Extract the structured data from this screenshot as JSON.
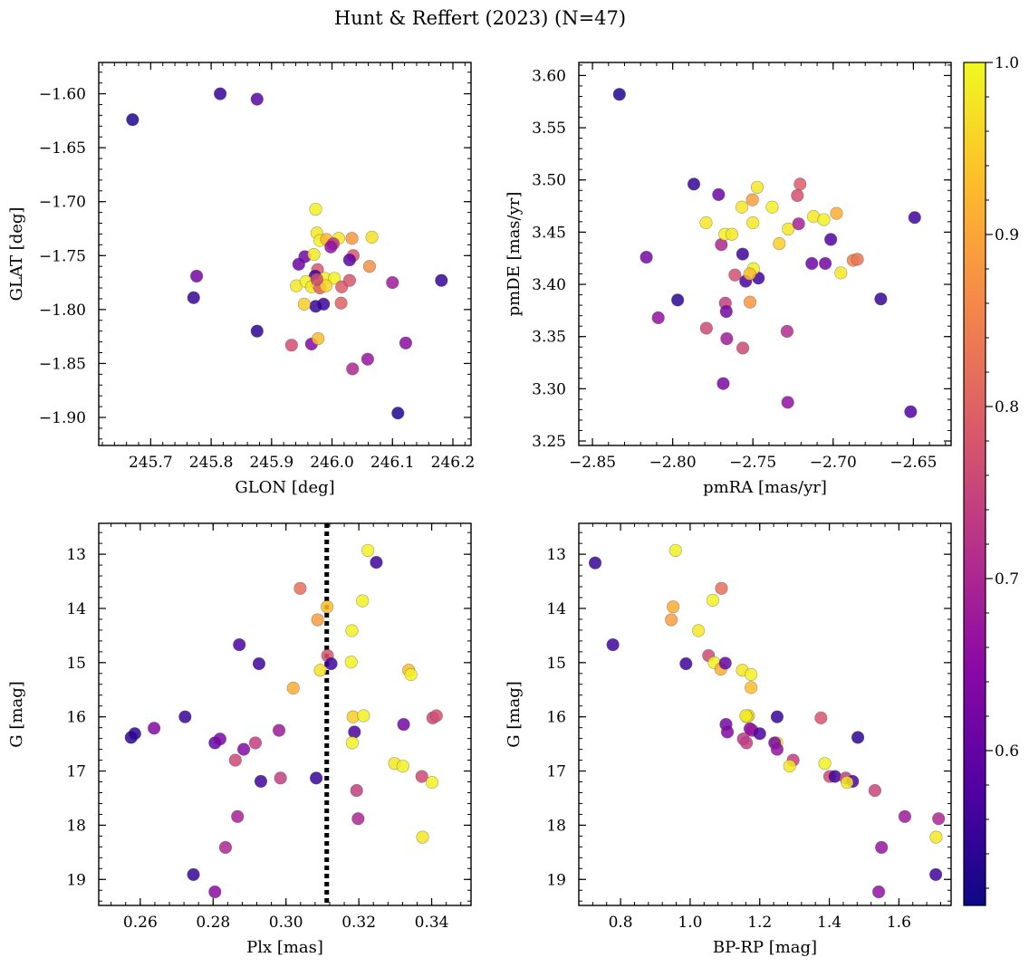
{
  "chart_data": {
    "title": "Hunt & Reffert (2023) (N=47)",
    "type": "scatter",
    "colormap": "plasma",
    "colorbar": {
      "range": [
        0.51,
        1.0
      ],
      "ticks": [
        0.6,
        0.7,
        0.8,
        0.9,
        1.0
      ],
      "tick_labels": [
        "0.6",
        "0.7",
        "0.8",
        "0.9",
        "1.0"
      ]
    },
    "panels": [
      {
        "id": "glon-glat",
        "xlabel": "GLON [deg]",
        "ylabel": "GLAT [deg]",
        "xlim": [
          245.614,
          246.23
        ],
        "ylim": [
          -1.926,
          -1.571
        ],
        "xticks": [
          245.7,
          245.8,
          245.9,
          246.0,
          246.1,
          246.2
        ],
        "xtick_labels": [
          "245.7",
          "245.8",
          "245.9",
          "246.0",
          "246.1",
          "246.2"
        ],
        "yticks": [
          -1.6,
          -1.65,
          -1.7,
          -1.75,
          -1.8,
          -1.85,
          -1.9
        ],
        "ytick_labels": [
          "−1.60",
          "−1.65",
          "−1.70",
          "−1.75",
          "−1.80",
          "−1.85",
          "−1.90"
        ],
        "points": [
          [
            245.67,
            -1.624,
            0.53
          ],
          [
            245.815,
            -1.6,
            0.55
          ],
          [
            245.876,
            -1.605,
            0.59
          ],
          [
            245.776,
            -1.769,
            0.62
          ],
          [
            245.771,
            -1.789,
            0.55
          ],
          [
            245.876,
            -1.82,
            0.54
          ],
          [
            246.181,
            -1.773,
            0.55
          ],
          [
            246.109,
            -1.896,
            0.53
          ],
          [
            246.122,
            -1.831,
            0.65
          ],
          [
            246.1,
            -1.775,
            0.68
          ],
          [
            246.059,
            -1.846,
            0.67
          ],
          [
            246.034,
            -1.855,
            0.7
          ],
          [
            245.933,
            -1.833,
            0.77
          ],
          [
            245.966,
            -1.832,
            0.64
          ],
          [
            245.977,
            -1.827,
            0.93
          ],
          [
            245.973,
            -1.707,
            0.99
          ],
          [
            245.975,
            -1.729,
            0.98
          ],
          [
            245.98,
            -1.736,
            0.99
          ],
          [
            245.991,
            -1.735,
            0.92
          ],
          [
            246.011,
            -1.734,
            0.98
          ],
          [
            246.033,
            -1.734,
            0.88
          ],
          [
            246.066,
            -1.733,
            0.97
          ],
          [
            246.062,
            -1.76,
            0.87
          ],
          [
            246.035,
            -1.75,
            0.78
          ],
          [
            246.029,
            -1.754,
            0.59
          ],
          [
            246.002,
            -1.739,
            0.72
          ],
          [
            245.998,
            -1.742,
            0.66
          ],
          [
            245.955,
            -1.751,
            0.62
          ],
          [
            245.945,
            -1.758,
            0.61
          ],
          [
            245.97,
            -1.749,
            0.98
          ],
          [
            245.976,
            -1.763,
            0.78
          ],
          [
            245.972,
            -1.769,
            0.56
          ],
          [
            245.941,
            -1.778,
            0.98
          ],
          [
            245.957,
            -1.774,
            0.99
          ],
          [
            245.966,
            -1.779,
            0.98
          ],
          [
            245.977,
            -1.777,
            0.97
          ],
          [
            245.988,
            -1.771,
            0.99
          ],
          [
            246.004,
            -1.771,
            0.99
          ],
          [
            245.98,
            -1.78,
            0.8
          ],
          [
            245.99,
            -1.778,
            0.96
          ],
          [
            246.016,
            -1.779,
            0.79
          ],
          [
            246.029,
            -1.773,
            0.78
          ],
          [
            246.015,
            -1.794,
            0.8
          ],
          [
            245.986,
            -1.795,
            0.56
          ],
          [
            245.973,
            -1.797,
            0.55
          ],
          [
            245.954,
            -1.795,
            0.95
          ],
          [
            245.975,
            -1.772,
            0.76
          ]
        ]
      },
      {
        "id": "pmra-pmde",
        "xlabel": "pmRA [mas/yr]",
        "ylabel": "pmDE [mas/yr]",
        "xlim": [
          -2.8585,
          -2.6265
        ],
        "ylim": [
          3.2457,
          3.6125
        ],
        "xticks": [
          -2.85,
          -2.8,
          -2.75,
          -2.7,
          -2.65
        ],
        "xtick_labels": [
          "−2.85",
          "−2.80",
          "−2.75",
          "−2.70",
          "−2.65"
        ],
        "yticks": [
          3.25,
          3.3,
          3.35,
          3.4,
          3.45,
          3.5,
          3.55,
          3.6
        ],
        "ytick_labels": [
          "3.25",
          "3.30",
          "3.35",
          "3.40",
          "3.45",
          "3.50",
          "3.55",
          "3.60"
        ],
        "points": [
          [
            -2.8332,
            3.582,
            0.53
          ],
          [
            -2.7868,
            3.496,
            0.55
          ],
          [
            -2.8164,
            3.426,
            0.62
          ],
          [
            -2.7969,
            3.385,
            0.54
          ],
          [
            -2.809,
            3.368,
            0.66
          ],
          [
            -2.7792,
            3.459,
            0.98
          ],
          [
            -2.7714,
            3.486,
            0.61
          ],
          [
            -2.7697,
            3.438,
            0.7
          ],
          [
            -2.7675,
            3.448,
            0.99
          ],
          [
            -2.7631,
            3.448,
            0.98
          ],
          [
            -2.7569,
            3.474,
            0.98
          ],
          [
            -2.7473,
            3.493,
            0.98
          ],
          [
            -2.7503,
            3.481,
            0.89
          ],
          [
            -2.738,
            3.474,
            0.99
          ],
          [
            -2.7206,
            3.496,
            0.79
          ],
          [
            -2.7223,
            3.485,
            0.77
          ],
          [
            -2.7123,
            3.465,
            0.98
          ],
          [
            -2.7058,
            3.462,
            0.99
          ],
          [
            -2.6979,
            3.468,
            0.91
          ],
          [
            -2.6492,
            3.464,
            0.56
          ],
          [
            -2.7015,
            3.443,
            0.58
          ],
          [
            -2.728,
            3.453,
            0.98
          ],
          [
            -2.7336,
            3.439,
            0.95
          ],
          [
            -2.7215,
            3.458,
            0.69
          ],
          [
            -2.75,
            3.459,
            0.98
          ],
          [
            -2.7133,
            3.42,
            0.61
          ],
          [
            -2.7049,
            3.42,
            0.62
          ],
          [
            -2.6952,
            3.411,
            0.98
          ],
          [
            -2.6875,
            3.423,
            0.85
          ],
          [
            -2.6849,
            3.424,
            0.83
          ],
          [
            -2.6703,
            3.386,
            0.55
          ],
          [
            -2.7564,
            3.429,
            0.56
          ],
          [
            -2.7612,
            3.409,
            0.77
          ],
          [
            -2.7545,
            3.403,
            0.57
          ],
          [
            -2.7466,
            3.406,
            0.56
          ],
          [
            -2.7496,
            3.415,
            0.99
          ],
          [
            -2.752,
            3.41,
            0.93
          ],
          [
            -2.7672,
            3.382,
            0.74
          ],
          [
            -2.7518,
            3.383,
            0.88
          ],
          [
            -2.7666,
            3.374,
            0.62
          ],
          [
            -2.779,
            3.358,
            0.76
          ],
          [
            -2.7663,
            3.348,
            0.68
          ],
          [
            -2.7563,
            3.339,
            0.76
          ],
          [
            -2.7287,
            3.355,
            0.71
          ],
          [
            -2.7685,
            3.305,
            0.63
          ],
          [
            -2.7283,
            3.287,
            0.66
          ],
          [
            -2.6517,
            3.278,
            0.58
          ]
        ]
      },
      {
        "id": "plx-g",
        "xlabel": "Plx [mas]",
        "ylabel": "G [mag]",
        "xlim": [
          0.2486,
          0.3508
        ],
        "ylim": [
          19.48,
          12.43
        ],
        "xticks": [
          0.26,
          0.28,
          0.3,
          0.32,
          0.34
        ],
        "xtick_labels": [
          "0.26",
          "0.28",
          "0.30",
          "0.32",
          "0.34"
        ],
        "yticks": [
          13,
          14,
          15,
          16,
          17,
          18,
          19
        ],
        "ytick_labels": [
          "13",
          "14",
          "15",
          "16",
          "17",
          "18",
          "19"
        ],
        "vline": 0.3112,
        "points": [
          [
            0.3225,
            12.93,
            0.99
          ],
          [
            0.3248,
            13.15,
            0.56
          ],
          [
            0.3039,
            13.63,
            0.82
          ],
          [
            0.3113,
            13.97,
            0.93
          ],
          [
            0.321,
            13.86,
            0.99
          ],
          [
            0.3087,
            14.21,
            0.89
          ],
          [
            0.3181,
            14.41,
            0.99
          ],
          [
            0.2872,
            14.67,
            0.57
          ],
          [
            0.2926,
            15.02,
            0.56
          ],
          [
            0.3114,
            14.87,
            0.78
          ],
          [
            0.3124,
            15.02,
            0.56
          ],
          [
            0.3179,
            14.99,
            0.99
          ],
          [
            0.3094,
            15.14,
            0.97
          ],
          [
            0.3337,
            15.14,
            0.93
          ],
          [
            0.3343,
            15.22,
            0.99
          ],
          [
            0.302,
            15.47,
            0.91
          ],
          [
            0.2575,
            16.38,
            0.54
          ],
          [
            0.2585,
            16.31,
            0.54
          ],
          [
            0.2638,
            16.21,
            0.64
          ],
          [
            0.2723,
            16.0,
            0.55
          ],
          [
            0.2805,
            16.48,
            0.6
          ],
          [
            0.2819,
            16.41,
            0.63
          ],
          [
            0.2884,
            16.6,
            0.64
          ],
          [
            0.2916,
            16.48,
            0.74
          ],
          [
            0.2981,
            16.25,
            0.68
          ],
          [
            0.2861,
            16.8,
            0.76
          ],
          [
            0.2931,
            17.19,
            0.56
          ],
          [
            0.2985,
            17.13,
            0.74
          ],
          [
            0.3083,
            17.13,
            0.55
          ],
          [
            0.3184,
            16.0,
            0.95
          ],
          [
            0.3213,
            15.98,
            0.99
          ],
          [
            0.3188,
            16.28,
            0.57
          ],
          [
            0.3182,
            16.48,
            0.99
          ],
          [
            0.3323,
            16.14,
            0.62
          ],
          [
            0.3403,
            16.02,
            0.76
          ],
          [
            0.3413,
            15.98,
            0.77
          ],
          [
            0.3298,
            16.86,
            0.98
          ],
          [
            0.3321,
            16.91,
            0.99
          ],
          [
            0.3373,
            17.1,
            0.76
          ],
          [
            0.3401,
            17.21,
            0.99
          ],
          [
            0.3194,
            17.36,
            0.74
          ],
          [
            0.3198,
            17.88,
            0.7
          ],
          [
            0.2867,
            17.84,
            0.69
          ],
          [
            0.2834,
            18.41,
            0.7
          ],
          [
            0.2746,
            18.91,
            0.55
          ],
          [
            0.2805,
            19.23,
            0.65
          ],
          [
            0.3375,
            18.22,
            0.98
          ]
        ]
      },
      {
        "id": "bprp-g",
        "xlabel": "BP-RP [mag]",
        "ylabel": "G [mag]",
        "xlim": [
          0.68,
          1.75
        ],
        "ylim": [
          19.48,
          12.43
        ],
        "xticks": [
          0.8,
          1.0,
          1.2,
          1.4,
          1.6
        ],
        "xtick_labels": [
          "0.8",
          "1.0",
          "1.2",
          "1.4",
          "1.6"
        ],
        "yticks": [
          13,
          14,
          15,
          16,
          17,
          18,
          19
        ],
        "ytick_labels": [
          "13",
          "14",
          "15",
          "16",
          "17",
          "18",
          "19"
        ],
        "points": [
          [
            0.727,
            13.16,
            0.55
          ],
          [
            0.958,
            12.93,
            0.99
          ],
          [
            0.951,
            13.97,
            0.91
          ],
          [
            0.946,
            14.21,
            0.89
          ],
          [
            1.09,
            13.63,
            0.82
          ],
          [
            1.065,
            13.85,
            0.99
          ],
          [
            1.024,
            14.41,
            0.98
          ],
          [
            0.778,
            14.67,
            0.56
          ],
          [
            0.988,
            15.02,
            0.56
          ],
          [
            1.053,
            14.87,
            0.76
          ],
          [
            1.069,
            15.0,
            0.99
          ],
          [
            1.088,
            15.12,
            0.91
          ],
          [
            1.101,
            15.01,
            0.6
          ],
          [
            1.15,
            15.14,
            0.98
          ],
          [
            1.175,
            15.22,
            0.99
          ],
          [
            1.175,
            15.46,
            0.93
          ],
          [
            1.168,
            15.98,
            0.96
          ],
          [
            1.163,
            16.0,
            0.99
          ],
          [
            1.25,
            16.0,
            0.55
          ],
          [
            1.376,
            16.02,
            0.78
          ],
          [
            1.482,
            16.38,
            0.54
          ],
          [
            1.103,
            16.14,
            0.62
          ],
          [
            1.107,
            16.28,
            0.64
          ],
          [
            1.172,
            16.22,
            0.65
          ],
          [
            1.178,
            16.25,
            0.67
          ],
          [
            1.2,
            16.31,
            0.57
          ],
          [
            1.153,
            16.41,
            0.73
          ],
          [
            1.162,
            16.48,
            0.74
          ],
          [
            1.249,
            16.48,
            0.99
          ],
          [
            1.243,
            16.48,
            0.63
          ],
          [
            1.25,
            16.6,
            0.66
          ],
          [
            1.296,
            16.8,
            0.74
          ],
          [
            1.286,
            16.91,
            0.98
          ],
          [
            1.387,
            16.86,
            0.99
          ],
          [
            1.401,
            17.1,
            0.76
          ],
          [
            1.416,
            17.1,
            0.56
          ],
          [
            1.447,
            17.13,
            0.74
          ],
          [
            1.467,
            17.19,
            0.57
          ],
          [
            1.451,
            17.21,
            0.98
          ],
          [
            1.531,
            17.36,
            0.75
          ],
          [
            1.617,
            17.84,
            0.68
          ],
          [
            1.714,
            17.88,
            0.7
          ],
          [
            1.707,
            18.22,
            0.98
          ],
          [
            1.55,
            18.41,
            0.67
          ],
          [
            1.542,
            19.23,
            0.66
          ],
          [
            1.706,
            18.91,
            0.56
          ],
          [
            1.16,
            15.98,
            0.98
          ]
        ]
      }
    ]
  }
}
